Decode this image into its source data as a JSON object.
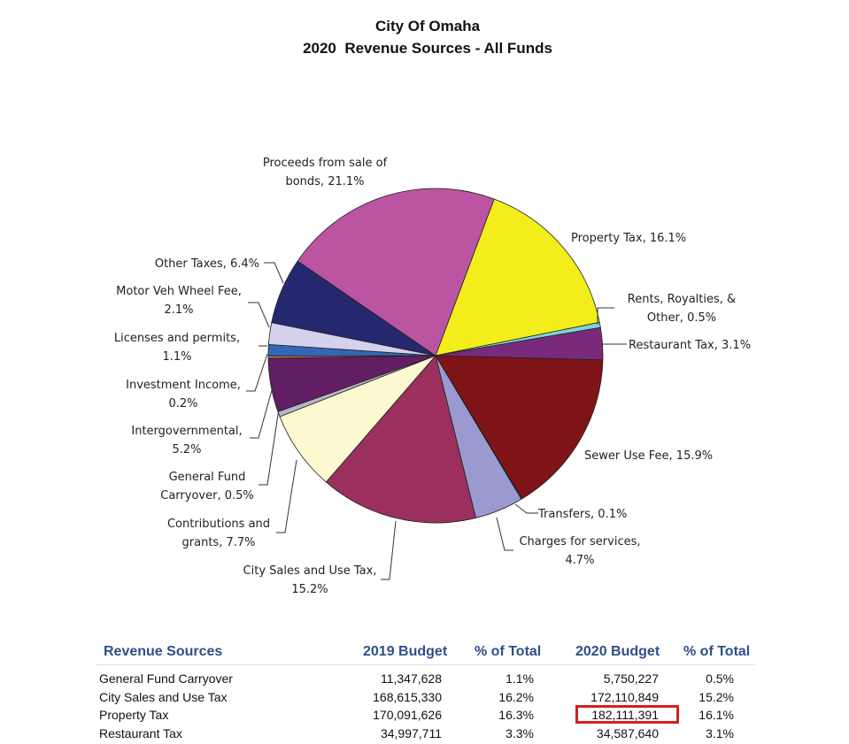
{
  "chart_data": {
    "type": "pie",
    "title": "City Of Omaha",
    "subtitle": "2020  Revenue Sources - All Funds",
    "slices": [
      {
        "label": "Property Tax, 16.1%",
        "value": 16.1,
        "color": "#f3ed1c"
      },
      {
        "label": "Rents, Royalties, & Other, 0.5%",
        "value": 0.5,
        "color": "#7fd3da"
      },
      {
        "label": "Restaurant Tax, 3.1%",
        "value": 3.1,
        "color": "#7a2a7a"
      },
      {
        "label": "Sewer Use Fee, 15.9%",
        "value": 15.9,
        "color": "#7e1418"
      },
      {
        "label": "Transfers, 0.1%",
        "value": 0.1,
        "color": "#6e2a3a"
      },
      {
        "label": "Charges for services, 4.7%",
        "value": 4.7,
        "color": "#9a9ad0"
      },
      {
        "label": "City Sales and Use Tax, 15.2%",
        "value": 15.2,
        "color": "#9b2f5e"
      },
      {
        "label": "Contributions and grants, 7.7%",
        "value": 7.7,
        "color": "#fcf8cf"
      },
      {
        "label": "General Fund Carryover, 0.5%",
        "value": 0.5,
        "color": "#b5b5c8"
      },
      {
        "label": "Intergovernmental, 5.2%",
        "value": 5.2,
        "color": "#621e62"
      },
      {
        "label": "Investment Income, 0.2%",
        "value": 0.2,
        "color": "#e6816e"
      },
      {
        "label": "Licenses and permits, 1.1%",
        "value": 1.1,
        "color": "#3366b5"
      },
      {
        "label": "Motor Veh Wheel Fee, 2.1%",
        "value": 2.1,
        "color": "#d3d1ec"
      },
      {
        "label": "Other Taxes, 6.4%",
        "value": 6.4,
        "color": "#25286f"
      },
      {
        "label": "Proceeds from sale of bonds, 21.1%",
        "value": 21.1,
        "color": "#bb55a1"
      }
    ],
    "labels": [
      {
        "lines": [
          "Proceeds from sale of",
          "bonds, 21.1%"
        ]
      },
      {
        "lines": [
          "Property Tax, 16.1%"
        ]
      },
      {
        "lines": [
          "Rents, Royalties, &",
          "Other, 0.5%"
        ]
      },
      {
        "lines": [
          "Restaurant Tax, 3.1%"
        ]
      },
      {
        "lines": [
          "Sewer Use Fee, 15.9%"
        ]
      },
      {
        "lines": [
          "Transfers, 0.1%"
        ]
      },
      {
        "lines": [
          "Charges for services,",
          "4.7%"
        ]
      },
      {
        "lines": [
          "City Sales and Use Tax,",
          "15.2%"
        ]
      },
      {
        "lines": [
          "Contributions and",
          "grants, 7.7%"
        ]
      },
      {
        "lines": [
          "General Fund",
          "Carryover, 0.5%"
        ]
      },
      {
        "lines": [
          "Intergovernmental,",
          "5.2%"
        ]
      },
      {
        "lines": [
          "Investment Income,",
          "0.2%"
        ]
      },
      {
        "lines": [
          "Licenses and permits,",
          "1.1%"
        ]
      },
      {
        "lines": [
          "Motor Veh Wheel Fee,",
          "2.1%"
        ]
      },
      {
        "lines": [
          "Other Taxes, 6.4%"
        ]
      }
    ]
  },
  "table": {
    "headers": [
      "Revenue Sources",
      "2019 Budget",
      "% of Total",
      "2020 Budget",
      "% of Total"
    ],
    "rows": [
      [
        "General Fund Carryover",
        "11,347,628",
        "1.1%",
        "5,750,227",
        "0.5%"
      ],
      [
        "City Sales and Use Tax",
        "168,615,330",
        "16.2%",
        "172,110,849",
        "15.2%"
      ],
      [
        "Property Tax",
        "170,091,626",
        "16.3%",
        "182,111,391",
        "16.1%"
      ],
      [
        "Restaurant Tax",
        "34,997,711",
        "3.3%",
        "34,587,640",
        "3.1%"
      ]
    ],
    "highlight_color": "#d42020"
  }
}
